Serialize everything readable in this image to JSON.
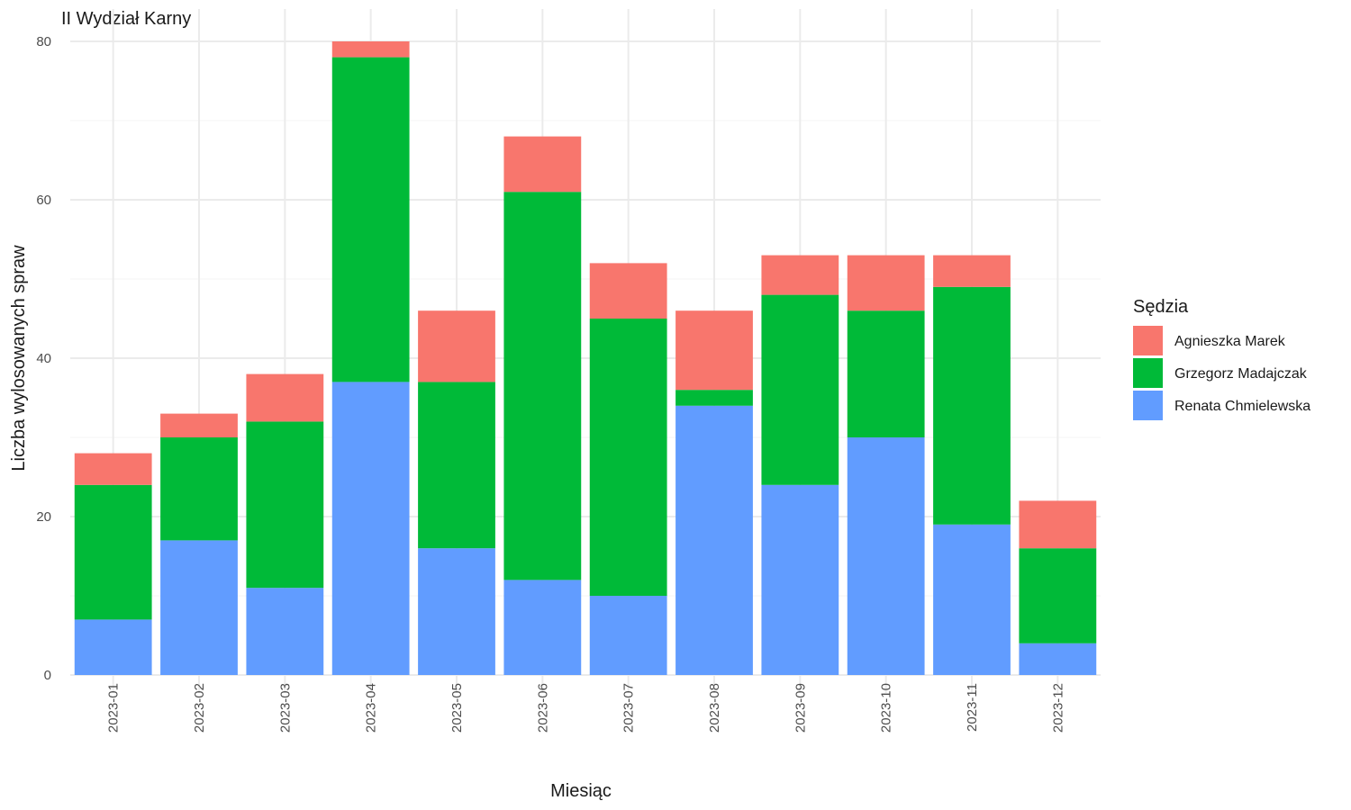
{
  "chart_data": {
    "type": "bar",
    "stacked": true,
    "title": "II Wydział Karny",
    "xlabel": "Miesiąc",
    "ylabel": "Liczba wylosowanych spraw",
    "ylim": [
      0,
      80
    ],
    "yticks": [
      0,
      20,
      40,
      60,
      80
    ],
    "grid": true,
    "legend_position": "right",
    "legend_title": "Sędzia",
    "categories": [
      "2023-01",
      "2023-02",
      "2023-03",
      "2023-04",
      "2023-05",
      "2023-06",
      "2023-07",
      "2023-08",
      "2023-09",
      "2023-10",
      "2023-11",
      "2023-12"
    ],
    "stack_order_bottom_to_top": [
      "Renata Chmielewska",
      "Grzegorz Madajczak",
      "Agnieszka Marek"
    ],
    "series": [
      {
        "name": "Agnieszka Marek",
        "color": "#F8766D",
        "values": [
          4,
          3,
          6,
          2,
          9,
          7,
          7,
          10,
          5,
          7,
          4,
          6
        ]
      },
      {
        "name": "Grzegorz Madajczak",
        "color": "#00BA38",
        "values": [
          17,
          13,
          21,
          41,
          21,
          49,
          35,
          2,
          24,
          16,
          30,
          12
        ]
      },
      {
        "name": "Renata Chmielewska",
        "color": "#619CFF",
        "values": [
          7,
          17,
          11,
          37,
          16,
          12,
          10,
          34,
          24,
          30,
          19,
          4
        ]
      }
    ]
  }
}
